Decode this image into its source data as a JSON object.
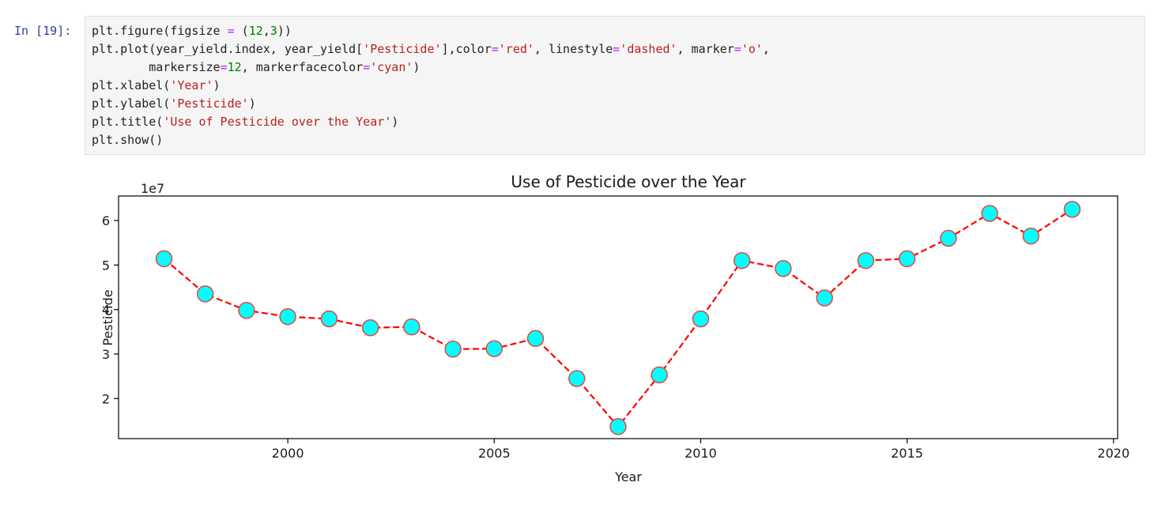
{
  "cell": {
    "prompt": "In [19]:",
    "lines": [
      [
        {
          "t": "plt.figure(figsize "
        },
        {
          "t": "=",
          "c": "op"
        },
        {
          "t": " ("
        },
        {
          "t": "12",
          "c": "num"
        },
        {
          "t": ","
        },
        {
          "t": "3",
          "c": "num"
        },
        {
          "t": "))"
        }
      ],
      [
        {
          "t": "plt.plot(year_yield.index, year_yield["
        },
        {
          "t": "'Pesticide'",
          "c": "str"
        },
        {
          "t": "],color"
        },
        {
          "t": "=",
          "c": "op"
        },
        {
          "t": "'red'",
          "c": "str"
        },
        {
          "t": ", linestyle"
        },
        {
          "t": "=",
          "c": "op"
        },
        {
          "t": "'dashed'",
          "c": "str"
        },
        {
          "t": ", marker"
        },
        {
          "t": "=",
          "c": "op"
        },
        {
          "t": "'o'",
          "c": "str"
        },
        {
          "t": ","
        }
      ],
      [
        {
          "t": "        markersize"
        },
        {
          "t": "=",
          "c": "op"
        },
        {
          "t": "12",
          "c": "num"
        },
        {
          "t": ", markerfacecolor"
        },
        {
          "t": "=",
          "c": "op"
        },
        {
          "t": "'cyan'",
          "c": "str"
        },
        {
          "t": ")"
        }
      ],
      [
        {
          "t": "plt.xlabel("
        },
        {
          "t": "'Year'",
          "c": "str"
        },
        {
          "t": ")"
        }
      ],
      [
        {
          "t": "plt.ylabel("
        },
        {
          "t": "'Pesticide'",
          "c": "str"
        },
        {
          "t": ")"
        }
      ],
      [
        {
          "t": "plt.title("
        },
        {
          "t": "'Use of Pesticide over the Year'",
          "c": "str"
        },
        {
          "t": ")"
        }
      ],
      [
        {
          "t": "plt.show()"
        }
      ]
    ]
  },
  "chart_data": {
    "type": "line",
    "title": "Use of Pesticide over the Year",
    "xlabel": "Year",
    "ylabel": "Pesticide",
    "y_offset_label": "1e7",
    "x": [
      1997,
      1998,
      1999,
      2000,
      2001,
      2002,
      2003,
      2004,
      2005,
      2006,
      2007,
      2008,
      2009,
      2010,
      2011,
      2012,
      2013,
      2014,
      2015,
      2016,
      2017,
      2018,
      2019
    ],
    "series": [
      {
        "values": [
          51.4,
          43.5,
          39.8,
          38.4,
          37.9,
          35.9,
          36.1,
          31.1,
          31.2,
          33.5,
          24.5,
          13.7,
          25.3,
          37.9,
          51.0,
          49.2,
          42.6,
          51.0,
          51.4,
          56.0,
          61.6,
          56.5,
          62.5
        ],
        "line_color": "#ff0000",
        "marker_face": "#00ffff",
        "marker_edge": "#e8453c",
        "linestyle": "dashed"
      }
    ],
    "x_ticks": [
      "2000",
      "2005",
      "2010",
      "2015",
      "2020"
    ],
    "y_ticks": [
      "2",
      "3",
      "4",
      "5",
      "6"
    ],
    "xlim": [
      1995.9,
      2020.1
    ],
    "ylim": [
      11.0,
      65.5
    ],
    "grid": false
  }
}
